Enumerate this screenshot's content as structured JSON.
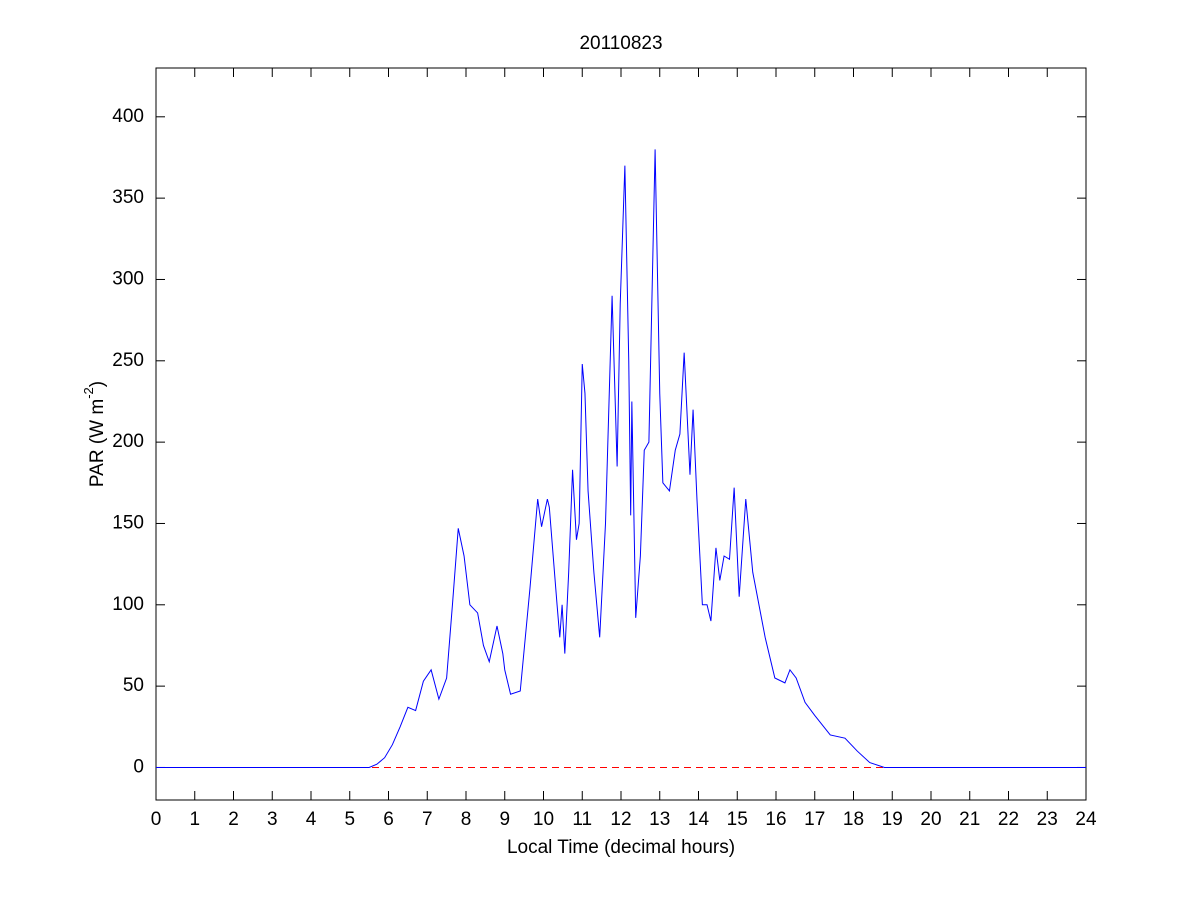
{
  "chart_data": {
    "type": "line",
    "title": "20110823",
    "xlabel": "Local Time (decimal hours)",
    "ylabel": [
      "PAR (W m",
      "-2",
      ")"
    ],
    "xlim": [
      0,
      24
    ],
    "xticks": [
      0,
      1,
      2,
      3,
      4,
      5,
      6,
      7,
      8,
      9,
      10,
      11,
      12,
      13,
      14,
      15,
      16,
      17,
      18,
      19,
      20,
      21,
      22,
      23,
      24
    ],
    "ylim": [
      -20,
      430
    ],
    "yticks": [
      0,
      50,
      100,
      150,
      200,
      250,
      300,
      350,
      400
    ],
    "reference_line": {
      "value": 0,
      "color": "#ff0000",
      "style": "dashed"
    },
    "series": [
      {
        "color": "#0000ff",
        "x": [
          0,
          5.5,
          5.7,
          5.9,
          6.1,
          6.3,
          6.5,
          6.7,
          6.9,
          7.1,
          7.3,
          7.5,
          7.65,
          7.8,
          7.95,
          8.1,
          8.3,
          8.45,
          8.6,
          8.8,
          8.95,
          9.0,
          9.15,
          9.4,
          9.65,
          9.85,
          9.95,
          10.1,
          10.15,
          10.35,
          10.42,
          10.48,
          10.55,
          10.65,
          10.75,
          10.85,
          10.92,
          11.0,
          11.07,
          11.15,
          11.3,
          11.45,
          11.6,
          11.77,
          11.9,
          11.98,
          12.1,
          12.2,
          12.25,
          12.28,
          12.38,
          12.5,
          12.6,
          12.72,
          12.88,
          13.0,
          13.08,
          13.25,
          13.4,
          13.52,
          13.63,
          13.78,
          13.86,
          13.96,
          14.1,
          14.22,
          14.32,
          14.45,
          14.55,
          14.66,
          14.8,
          14.92,
          15.05,
          15.22,
          15.4,
          15.72,
          15.97,
          16.23,
          16.36,
          16.52,
          16.75,
          17.0,
          17.4,
          17.78,
          18.1,
          18.42,
          18.8,
          24
        ],
        "values": [
          0,
          0,
          2,
          6,
          14,
          25,
          37,
          35,
          53,
          60,
          42,
          55,
          100,
          147,
          130,
          100,
          95,
          75,
          65,
          87,
          70,
          60,
          45,
          47,
          110,
          165,
          148,
          165,
          160,
          100,
          80,
          100,
          70,
          120,
          183,
          140,
          150,
          248,
          230,
          170,
          120,
          80,
          150,
          290,
          185,
          285,
          370,
          250,
          155,
          225,
          92,
          130,
          195,
          200,
          380,
          230,
          175,
          170,
          195,
          205,
          255,
          180,
          220,
          165,
          100,
          100,
          90,
          135,
          115,
          130,
          128,
          172,
          105,
          165,
          120,
          80,
          55,
          52,
          60,
          55,
          40,
          32,
          20,
          18,
          10,
          3,
          0,
          0
        ]
      }
    ]
  }
}
